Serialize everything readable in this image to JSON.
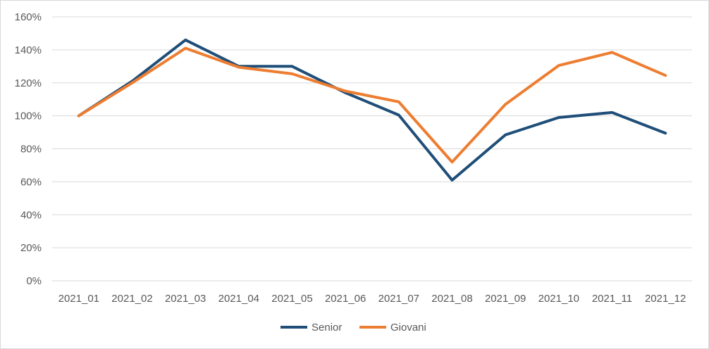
{
  "chart_data": {
    "type": "line",
    "title": "",
    "xlabel": "",
    "ylabel": "",
    "categories": [
      "2021_01",
      "2021_02",
      "2021_03",
      "2021_04",
      "2021_05",
      "2021_06",
      "2021_07",
      "2021_08",
      "2021_09",
      "2021_10",
      "2021_11",
      "2021_12"
    ],
    "y_ticks": [
      "0%",
      "20%",
      "40%",
      "60%",
      "80%",
      "100%",
      "120%",
      "140%",
      "160%"
    ],
    "ylim": [
      0,
      160
    ],
    "grid": true,
    "legend_position": "bottom",
    "series": [
      {
        "name": "Senior",
        "color": "#1f4e79",
        "values": [
          100,
          121,
          146,
          130,
          130,
          114,
          100.5,
          61,
          88.5,
          99,
          102,
          89.5
        ]
      },
      {
        "name": "Giovani",
        "color": "#ed7d31",
        "values": [
          100,
          120,
          141,
          129.5,
          125.5,
          115,
          108.5,
          72,
          107,
          130.5,
          138.5,
          124.5
        ]
      }
    ]
  }
}
